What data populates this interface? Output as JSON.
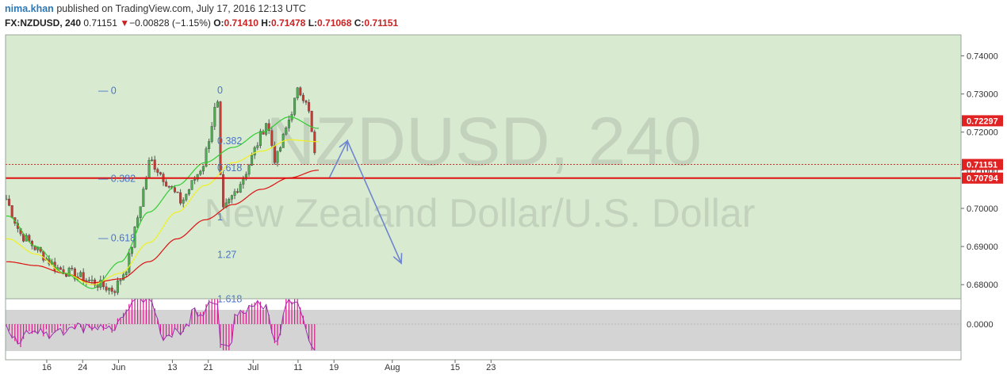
{
  "header": {
    "author": "nima.khan",
    "published_text": "published on TradingView.com, July 17, 2016 12:13 UTC",
    "symbol": "FX:NZDUSD, 240",
    "last": "0.71151",
    "arrow": "▼",
    "change": "−0.00828 (−1.15%)",
    "o_label": "O:",
    "o_val": "0.71410",
    "h_label": "H:",
    "h_val": "0.71478",
    "l_label": "L:",
    "l_val": "0.71068",
    "c_label": "C:",
    "c_val": "0.71151"
  },
  "watermark": {
    "symbol": "NZDUSD, 240",
    "description": "New Zealand Dollar/U.S. Dollar"
  },
  "colors": {
    "price_bg": "#d8ebd0",
    "osc_bg": "#d4d4d4",
    "bull": "#4caf50",
    "bear": "#d0392f",
    "ma_fast": "#33cc33",
    "ma_mid": "#f0f020",
    "ma_slow": "#dd1111",
    "fib": "#4a74c8",
    "osc_line": "#9b2fb0",
    "osc_hist": "#e0198a",
    "arrow": "#6f86cf"
  },
  "chart_data": {
    "type": "candlestick",
    "y_axis_ticks": [
      "0.74000",
      "0.73000",
      "0.72000",
      "0.71000",
      "0.70000",
      "0.69000",
      "0.68000"
    ],
    "y_axis_tick_values": [
      0.74,
      0.73,
      0.72,
      0.71,
      0.7,
      0.69,
      0.68
    ],
    "ylim": [
      0.6763,
      0.7455
    ],
    "x_axis_labels": [
      "16",
      "24",
      "Jun",
      "13",
      "21",
      "Jul",
      "11",
      "19",
      "Aug",
      "15",
      "23"
    ],
    "price_labels": [
      {
        "text": "0.72297",
        "value": 0.72297
      },
      {
        "text": "0.71151",
        "value": 0.71151
      },
      {
        "text": "0.70794",
        "value": 0.70794
      }
    ],
    "support_level": 0.70794,
    "current_price": 0.71151,
    "fibonacci": [
      {
        "label": "0",
        "value": 0.7309
      },
      {
        "label": "0.382",
        "value": 0.7078
      },
      {
        "label": "0.618",
        "value": 0.6922
      },
      {
        "label": "0",
        "value": 0.731
      },
      {
        "label": "0.382",
        "value": 0.7177
      },
      {
        "label": "0.618",
        "value": 0.7106
      },
      {
        "label": "1",
        "value": 0.6977
      },
      {
        "label": "1.27",
        "value": 0.6878
      },
      {
        "label": "1.618",
        "value": 0.6762
      }
    ],
    "projection": [
      {
        "date": "Jul 18",
        "value": 0.7081
      },
      {
        "date": "Jul 22",
        "value": 0.7177
      },
      {
        "date": "Aug 3",
        "value": 0.6856
      }
    ],
    "key_levels": [
      {
        "date": "May 7",
        "value": 0.7025
      },
      {
        "date": "May 10",
        "value": 0.6935
      },
      {
        "date": "May 18",
        "value": 0.6845
      },
      {
        "date": "May 31",
        "value": 0.6785
      },
      {
        "date": "Jun 3",
        "value": 0.685
      },
      {
        "date": "Jun 8",
        "value": 0.713
      },
      {
        "date": "Jun 15",
        "value": 0.7015
      },
      {
        "date": "Jun 20",
        "value": 0.712
      },
      {
        "date": "Jun 23",
        "value": 0.729
      },
      {
        "date": "Jun 24",
        "value": 0.6985
      },
      {
        "date": "Jun 29",
        "value": 0.7085
      },
      {
        "date": "Jul 4",
        "value": 0.723
      },
      {
        "date": "Jul 6",
        "value": 0.712
      },
      {
        "date": "Jul 11",
        "value": 0.731
      },
      {
        "date": "Jul 13",
        "value": 0.7285
      },
      {
        "date": "Jul 15",
        "value": 0.7115
      }
    ],
    "ma_fast_levels": [
      0.698,
      0.69,
      0.683,
      0.679,
      0.686,
      0.699,
      0.706,
      0.712,
      0.716,
      0.72,
      0.724,
      0.721
    ],
    "ma_mid_levels": [
      0.692,
      0.688,
      0.683,
      0.68,
      0.683,
      0.691,
      0.699,
      0.706,
      0.712,
      0.715,
      0.718,
      0.7175
    ],
    "ma_slow_levels": [
      0.686,
      0.685,
      0.683,
      0.6805,
      0.6815,
      0.686,
      0.692,
      0.697,
      0.701,
      0.705,
      0.708,
      0.71
    ],
    "oscillator": {
      "zero_label": "0.0000",
      "zero_value": 0.0
    }
  }
}
